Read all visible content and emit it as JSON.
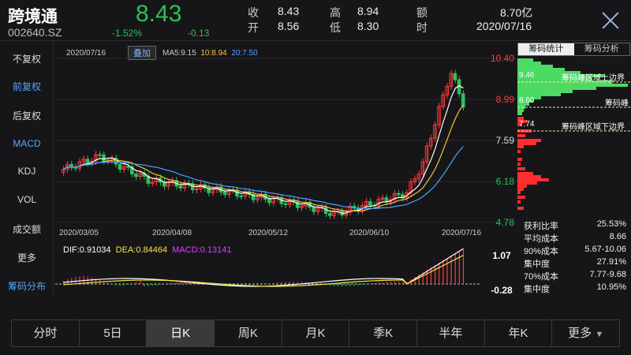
{
  "stock": {
    "name": "跨境通",
    "code": "002640.SZ",
    "price": "8.43",
    "pct": "-1.52%",
    "change": "-0.13"
  },
  "quote": {
    "close_k": "收",
    "close_v": "8.43",
    "open_k": "开",
    "open_v": "8.56",
    "high_k": "高",
    "high_v": "8.94",
    "low_k": "低",
    "low_v": "8.30",
    "amt_k": "额",
    "amt_v": "8.70亿",
    "time_k": "时",
    "time_v": "2020/07/16"
  },
  "left_menu": [
    "不复权",
    "前复权",
    "后复权",
    "MACD",
    "KDJ",
    "VOL",
    "成交额",
    "更多",
    "筹码分布"
  ],
  "chart": {
    "date": "2020/07/16",
    "overlay": "叠加",
    "ma5_label": "MA5:",
    "ma5": "9.15",
    "ma10_label": "10:",
    "ma10": "8.94",
    "ma20_label": "20:",
    "ma20": "7.50",
    "price_ticks": [
      "10.40",
      "8.99",
      "7.59",
      "6.18",
      "4.78"
    ],
    "date_ticks": [
      "2020/03/05",
      "2020/04/08",
      "2020/05/12",
      "2020/06/10",
      "2020/07/16"
    ],
    "dif_label": "DIF:",
    "dif": "0.91034",
    "dea_label": "DEA:",
    "dea": "0.84464",
    "macd_label": "MACD:",
    "macd": "0.13141",
    "macd_ticks": [
      "1.07",
      "-0.28"
    ]
  },
  "chip": {
    "tabs": [
      "筹码统计",
      "筹码分析"
    ],
    "p1": "9.46",
    "p1_label": "筹码峰区域上边界",
    "p2": "8.60",
    "p2_label": "筹码峰",
    "p3": "7.74",
    "p3_label": "筹码峰区域下边界",
    "stats": [
      [
        "获利比率",
        "25.53%"
      ],
      [
        "平均成本",
        "8.66"
      ],
      [
        "90%成本",
        "5.67-10.06"
      ],
      [
        "集中度",
        "27.91%"
      ],
      [
        "70%成本",
        "7.77-9.68"
      ],
      [
        "集中度",
        "10.95%"
      ]
    ]
  },
  "periods": [
    "分时",
    "5日",
    "日K",
    "周K",
    "月K",
    "季K",
    "半年",
    "年K",
    "更多"
  ],
  "colors": {
    "up": "#ff3b3b",
    "down": "#2fbf5a",
    "ma5": "#ffffff",
    "ma10": "#f5c242",
    "ma20": "#4aa3ff",
    "dea": "#f5e642",
    "macd": "#e040fb"
  }
}
